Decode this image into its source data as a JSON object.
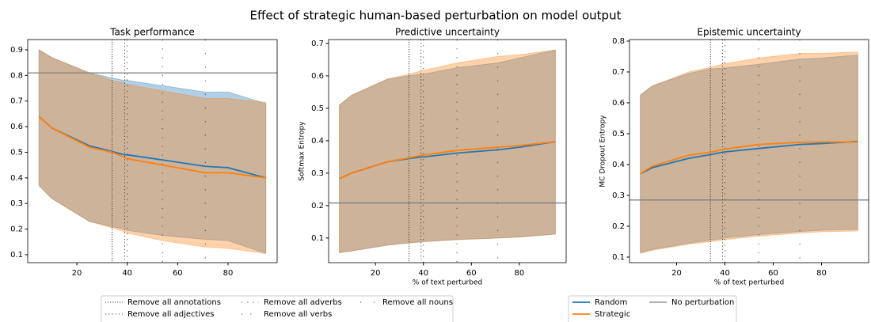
{
  "title": "Effect of strategic human-based perturbation on model output",
  "vlines": [
    {
      "name": "Remove all annotations",
      "x": 34
    },
    {
      "name": "Remove all adjectives",
      "x": 39
    },
    {
      "name": "Remove all adverbs",
      "x": 40
    },
    {
      "name": "Remove all verbs",
      "x": 54
    },
    {
      "name": "Remove all nouns",
      "x": 71
    }
  ],
  "chart_data": [
    {
      "type": "line",
      "title": "Task performance",
      "x": [
        5,
        10,
        25,
        34,
        39,
        40,
        54,
        71,
        80,
        95
      ],
      "xlim": [
        0.5,
        99.5
      ],
      "xticks": [
        20,
        40,
        60,
        80
      ],
      "ylim": [
        0.069,
        0.94
      ],
      "yticks": [
        0.1,
        0.2,
        0.3,
        0.4,
        0.5,
        0.6,
        0.7,
        0.8,
        0.9
      ],
      "hline": {
        "name": "No perturbation",
        "value": 0.81,
        "color": "#808080"
      },
      "series": [
        {
          "name": "Random",
          "color": "#1f77b4",
          "values": [
            0.64,
            0.595,
            0.525,
            0.503,
            0.49,
            0.49,
            0.47,
            0.445,
            0.44,
            0.4
          ],
          "lower": [
            0.37,
            0.32,
            0.23,
            0.21,
            0.2,
            0.195,
            0.175,
            0.16,
            0.155,
            0.105
          ],
          "upper": [
            0.9,
            0.87,
            0.81,
            0.79,
            0.78,
            0.78,
            0.76,
            0.735,
            0.735,
            0.69
          ]
        },
        {
          "name": "Strategic",
          "color": "#ff7f0e",
          "values": [
            0.64,
            0.595,
            0.52,
            0.5,
            0.48,
            0.475,
            0.45,
            0.42,
            0.42,
            0.4
          ],
          "lower": [
            0.37,
            0.32,
            0.23,
            0.205,
            0.19,
            0.185,
            0.155,
            0.13,
            0.125,
            0.105
          ],
          "upper": [
            0.9,
            0.87,
            0.81,
            0.78,
            0.77,
            0.765,
            0.74,
            0.71,
            0.71,
            0.695
          ]
        }
      ]
    },
    {
      "type": "line",
      "title": "Predictive uncertainty",
      "xlabel": "% of text perturbed",
      "ylabel": "Softmax Entropy",
      "x": [
        5,
        10,
        25,
        34,
        39,
        40,
        54,
        71,
        80,
        95
      ],
      "xlim": [
        0.5,
        99.5
      ],
      "xticks": [
        20,
        40,
        60,
        80
      ],
      "ylim": [
        0.024,
        0.712
      ],
      "yticks": [
        0.1,
        0.2,
        0.3,
        0.4,
        0.5,
        0.6,
        0.7
      ],
      "hline": {
        "name": "No perturbation",
        "value": 0.208,
        "color": "#808080"
      },
      "series": [
        {
          "name": "Random",
          "color": "#1f77b4",
          "values": [
            0.283,
            0.3,
            0.335,
            0.345,
            0.35,
            0.35,
            0.362,
            0.372,
            0.38,
            0.397
          ],
          "lower": [
            0.055,
            0.06,
            0.078,
            0.085,
            0.088,
            0.089,
            0.095,
            0.1,
            0.103,
            0.112
          ],
          "upper": [
            0.51,
            0.54,
            0.59,
            0.6,
            0.605,
            0.605,
            0.625,
            0.64,
            0.655,
            0.68
          ]
        },
        {
          "name": "Strategic",
          "color": "#ff7f0e",
          "values": [
            0.283,
            0.3,
            0.335,
            0.347,
            0.355,
            0.356,
            0.37,
            0.38,
            0.385,
            0.397
          ],
          "lower": [
            0.055,
            0.06,
            0.078,
            0.085,
            0.088,
            0.089,
            0.095,
            0.1,
            0.103,
            0.112
          ],
          "upper": [
            0.51,
            0.54,
            0.59,
            0.605,
            0.615,
            0.617,
            0.64,
            0.66,
            0.665,
            0.68
          ]
        }
      ]
    },
    {
      "type": "line",
      "title": "Epistemic uncertainty",
      "xlabel": "% of text perturbed",
      "ylabel": "MC Dropout Entropy",
      "x": [
        5,
        10,
        25,
        34,
        39,
        40,
        54,
        71,
        80,
        95
      ],
      "xlim": [
        0.5,
        99.5
      ],
      "xticks": [
        20,
        40,
        60,
        80
      ],
      "ylim": [
        0.082,
        0.805
      ],
      "yticks": [
        0.1,
        0.2,
        0.3,
        0.4,
        0.5,
        0.6,
        0.7,
        0.8
      ],
      "hline": {
        "name": "No perturbation",
        "value": 0.285,
        "color": "#808080"
      },
      "series": [
        {
          "name": "Random",
          "color": "#1f77b4",
          "values": [
            0.37,
            0.39,
            0.42,
            0.432,
            0.44,
            0.441,
            0.452,
            0.465,
            0.468,
            0.475
          ],
          "lower": [
            0.115,
            0.125,
            0.145,
            0.155,
            0.16,
            0.162,
            0.173,
            0.183,
            0.187,
            0.19
          ],
          "upper": [
            0.625,
            0.655,
            0.695,
            0.71,
            0.712,
            0.713,
            0.725,
            0.742,
            0.745,
            0.755
          ]
        },
        {
          "name": "Strategic",
          "color": "#ff7f0e",
          "values": [
            0.37,
            0.395,
            0.43,
            0.44,
            0.448,
            0.45,
            0.465,
            0.472,
            0.473,
            0.473
          ],
          "lower": [
            0.112,
            0.122,
            0.142,
            0.15,
            0.155,
            0.157,
            0.168,
            0.178,
            0.182,
            0.185
          ],
          "upper": [
            0.625,
            0.655,
            0.7,
            0.715,
            0.725,
            0.727,
            0.745,
            0.76,
            0.76,
            0.765
          ]
        }
      ]
    }
  ]
}
